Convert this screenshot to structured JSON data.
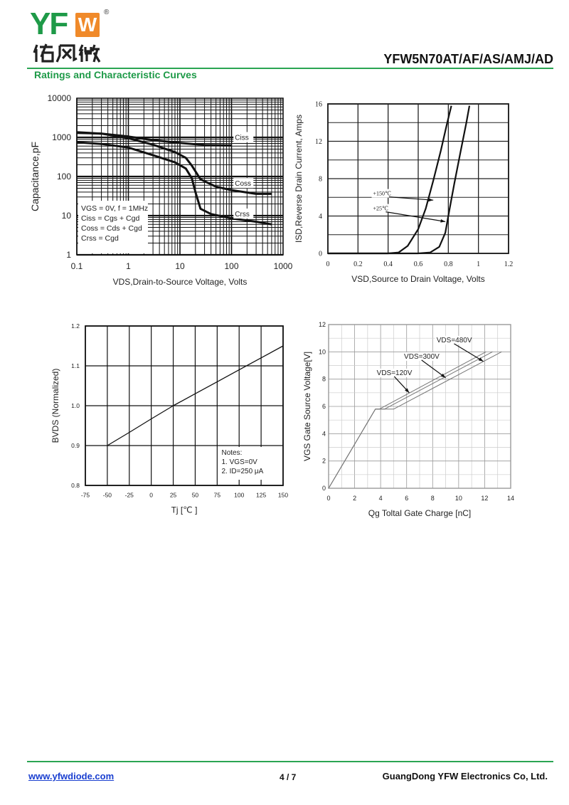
{
  "header": {
    "logo_text": "YFW",
    "logo_text_latin": "YF",
    "logo_text_box": "W",
    "logo_registered": "®",
    "logo_text_cn": "佑风微",
    "part_number": "YFW5N70AT/AF/AS/AMJ/AD",
    "section_title": "Ratings and Characteristic Curves"
  },
  "footer": {
    "website": "www.yfwdiode.com",
    "page": "4 / 7",
    "company": "GuangDong YFW Electronics Co, Ltd."
  },
  "colors": {
    "brand_green": "#1e9a48",
    "brand_orange": "#f08a2a",
    "link_blue": "#1a3fd0"
  },
  "chart_data": [
    {
      "id": "capacitance",
      "type": "line",
      "title": "",
      "xlabel": "VDS,Drain-to-Source Voltage, Volts",
      "ylabel": "Capacitance,pF",
      "xscale": "log",
      "yscale": "log",
      "xlim": [
        0.1,
        1000
      ],
      "ylim": [
        1,
        10000
      ],
      "x_ticks": [
        0.1,
        1,
        10,
        100,
        1000
      ],
      "x_tick_labels": [
        "0.1",
        "1",
        "10",
        "100",
        "1000"
      ],
      "y_ticks": [
        1,
        10,
        100,
        1000,
        10000
      ],
      "y_tick_labels": [
        "1",
        "10",
        "100",
        "1000",
        "10000"
      ],
      "grid": true,
      "series": [
        {
          "name": "Ciss",
          "label_x": 150,
          "label_y": 900,
          "points": [
            [
              0.1,
              1300
            ],
            [
              0.3,
              1250
            ],
            [
              1,
              1050
            ],
            [
              3,
              850
            ],
            [
              10,
              720
            ],
            [
              30,
              640
            ],
            [
              100,
              620
            ]
          ]
        },
        {
          "name": "Coss",
          "label_x": 150,
          "label_y": 60,
          "points": [
            [
              0.1,
              1350
            ],
            [
              0.3,
              1250
            ],
            [
              1,
              950
            ],
            [
              3,
              650
            ],
            [
              8,
              420
            ],
            [
              13,
              300
            ],
            [
              17,
              190
            ],
            [
              25,
              85
            ],
            [
              50,
              55
            ],
            [
              100,
              45
            ],
            [
              300,
              36
            ],
            [
              600,
              36
            ]
          ]
        },
        {
          "name": "Crss",
          "label_x": 150,
          "label_y": 10,
          "points": [
            [
              0.1,
              750
            ],
            [
              0.3,
              680
            ],
            [
              1,
              550
            ],
            [
              3,
              350
            ],
            [
              8,
              230
            ],
            [
              13,
              160
            ],
            [
              17,
              90
            ],
            [
              20,
              40
            ],
            [
              25,
              15
            ],
            [
              40,
              11
            ],
            [
              100,
              8.5
            ],
            [
              300,
              7
            ],
            [
              600,
              6
            ]
          ]
        }
      ],
      "legend_lines": [
        "VGS = 0V, f = 1MHz",
        "Ciss = Cgs + Cgd",
        "Coss = Cds + Cgd",
        "Crss = Cgd"
      ],
      "legend_placement": "bottom-left"
    },
    {
      "id": "body-diode",
      "type": "line",
      "title": "",
      "xlabel": "VSD,Source to Drain Voltage, Volts",
      "ylabel": "ISD,Reverse Drain Current, Amps",
      "xlim": [
        0,
        1.2
      ],
      "ylim": [
        0,
        16
      ],
      "x_ticks": [
        0,
        0.2,
        0.4,
        0.6,
        0.8,
        1,
        1.2
      ],
      "x_tick_labels": [
        "0",
        "0.2",
        "0.4",
        "0.6",
        "0.8",
        "1",
        "1.2"
      ],
      "y_ticks": [
        0,
        4,
        8,
        12,
        16
      ],
      "y_tick_labels": [
        "0",
        "4",
        "8",
        "12",
        "16"
      ],
      "grid": true,
      "series": [
        {
          "name": "+150℃",
          "points": [
            [
              0,
              0
            ],
            [
              0.4,
              0
            ],
            [
              0.47,
              0.1
            ],
            [
              0.53,
              0.8
            ],
            [
              0.6,
              2.6
            ],
            [
              0.65,
              4.8
            ],
            [
              0.7,
              7.8
            ],
            [
              0.75,
              11
            ],
            [
              0.79,
              13.8
            ],
            [
              0.82,
              15.8
            ]
          ]
        },
        {
          "name": "+25℃",
          "points": [
            [
              0,
              0
            ],
            [
              0.6,
              0
            ],
            [
              0.68,
              0.1
            ],
            [
              0.74,
              0.7
            ],
            [
              0.78,
              2.2
            ],
            [
              0.8,
              4
            ],
            [
              0.84,
              7.5
            ],
            [
              0.88,
              10.8
            ],
            [
              0.92,
              14
            ],
            [
              0.94,
              15.8
            ]
          ]
        }
      ],
      "annotations": [
        {
          "text": "+150℃",
          "x": 0.3,
          "y": 6.2,
          "arrow_to": [
            0.7,
            5.7
          ]
        },
        {
          "text": "+25℃",
          "x": 0.3,
          "y": 4.6,
          "arrow_to": [
            0.78,
            3.4
          ]
        }
      ]
    },
    {
      "id": "breakdown",
      "type": "line",
      "title": "",
      "xlabel": "Tj [℃ ]",
      "ylabel": "BVDS (Normalized)",
      "xlim": [
        -75,
        150
      ],
      "ylim": [
        0.8,
        1.2
      ],
      "x_ticks": [
        -75,
        -50,
        -25,
        0,
        25,
        50,
        75,
        100,
        125,
        150
      ],
      "x_tick_labels": [
        "-75",
        "-50",
        "-25",
        "0",
        "25",
        "50",
        "75",
        "100",
        "125",
        "150"
      ],
      "y_ticks": [
        0.8,
        0.9,
        1.0,
        1.1,
        1.2
      ],
      "y_tick_labels": [
        "0.8",
        "0.9",
        "1.0",
        "1.1",
        "1.2"
      ],
      "grid": true,
      "series": [
        {
          "name": "BVDS",
          "points": [
            [
              -50,
              0.9
            ],
            [
              -25,
              0.933
            ],
            [
              0,
              0.967
            ],
            [
              25,
              1.0
            ],
            [
              50,
              1.03
            ],
            [
              75,
              1.06
            ],
            [
              100,
              1.09
            ],
            [
              125,
              1.12
            ],
            [
              150,
              1.15
            ]
          ]
        }
      ],
      "notes": [
        "Notes:",
        "1. VGS=0V",
        "2. ID=250 μA"
      ]
    },
    {
      "id": "gate-charge",
      "type": "line",
      "title": "",
      "xlabel": "Qg Toltal Gate Charge [nC]",
      "ylabel": "VGS Gate Source Voltage[V]",
      "xlim": [
        0,
        14
      ],
      "ylim": [
        0,
        12
      ],
      "x_ticks": [
        0,
        2,
        4,
        6,
        8,
        10,
        12,
        14
      ],
      "x_tick_labels": [
        "0",
        "2",
        "4",
        "6",
        "8",
        "10",
        "12",
        "14"
      ],
      "y_ticks": [
        0,
        2,
        4,
        6,
        8,
        10,
        12
      ],
      "y_tick_labels": [
        "0",
        "2",
        "4",
        "6",
        "8",
        "10",
        "12"
      ],
      "grid": true,
      "series": [
        {
          "name": "VDS=120V",
          "points": [
            [
              0,
              0
            ],
            [
              3.6,
              5.8
            ],
            [
              3.9,
              5.8
            ],
            [
              12.1,
              10
            ]
          ]
        },
        {
          "name": "VDS=300V",
          "points": [
            [
              0,
              0
            ],
            [
              3.6,
              5.8
            ],
            [
              4.3,
              5.8
            ],
            [
              12.6,
              10
            ]
          ]
        },
        {
          "name": "VDS=480V",
          "points": [
            [
              0,
              0
            ],
            [
              3.6,
              5.8
            ],
            [
              5,
              5.8
            ],
            [
              13.3,
              10
            ]
          ]
        }
      ],
      "annotations": [
        {
          "text": "VDS=120V",
          "x": 3.7,
          "y": 8.3,
          "arrow_to": [
            6.2,
            7.0
          ]
        },
        {
          "text": "VDS=300V",
          "x": 5.8,
          "y": 9.5,
          "arrow_to": [
            9.0,
            8.1
          ]
        },
        {
          "text": "VDS=480V",
          "x": 8.3,
          "y": 10.7,
          "arrow_to": [
            11.9,
            9.3
          ]
        }
      ]
    }
  ]
}
